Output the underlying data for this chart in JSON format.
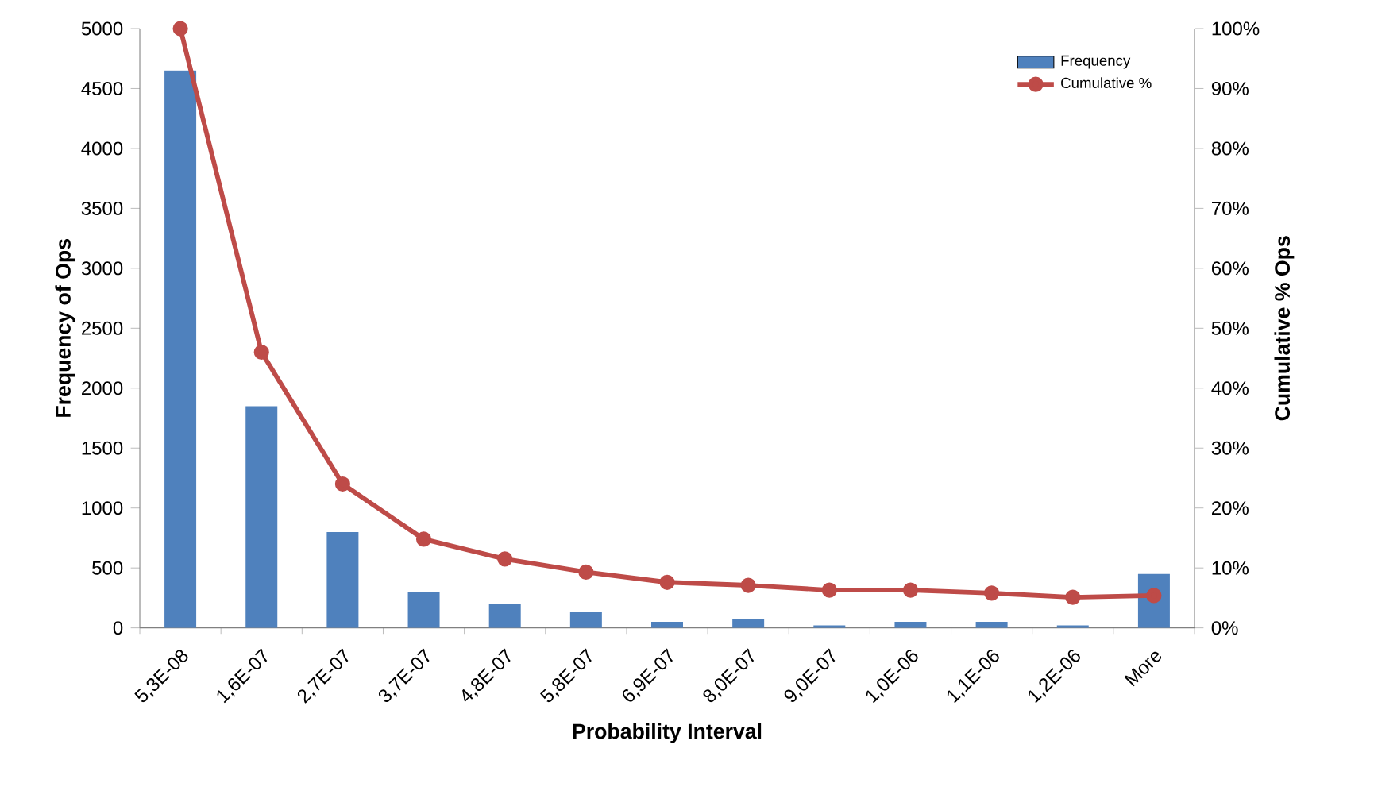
{
  "chart_data": {
    "type": "bar",
    "xlabel": "Probability Interval",
    "ylabel": "Frequency of Ops",
    "y2label": "Cumulative % Ops",
    "categories": [
      "5,3E-08",
      "1,6E-07",
      "2,7E-07",
      "3,7E-07",
      "4,8E-07",
      "5,8E-07",
      "6,9E-07",
      "8,0E-07",
      "9,0E-07",
      "1,0E-06",
      "1,1E-06",
      "1,2E-06",
      "More"
    ],
    "series": [
      {
        "name": "Frequency",
        "color": "#4f81bd",
        "values": [
          4650,
          1850,
          800,
          300,
          200,
          130,
          50,
          70,
          20,
          50,
          50,
          20,
          450
        ]
      },
      {
        "name": "Cumulative %",
        "type": "line",
        "axis": "y2",
        "color": "#be4b48",
        "marker": "circle",
        "values": [
          100,
          46,
          24,
          14.8,
          11.5,
          9.3,
          7.6,
          7.1,
          6.3,
          6.3,
          5.8,
          5.1,
          5.4
        ]
      }
    ],
    "ylim": [
      0,
      5000
    ],
    "yticks": [
      0,
      500,
      1000,
      1500,
      2000,
      2500,
      3000,
      3500,
      4000,
      4500,
      5000
    ],
    "y2lim": [
      0,
      100
    ],
    "y2ticks": [
      {
        "value": 0,
        "label": "0%"
      },
      {
        "value": 10,
        "label": "10%"
      },
      {
        "value": 20,
        "label": "20%"
      },
      {
        "value": 30,
        "label": "30%"
      },
      {
        "value": 40,
        "label": "40%"
      },
      {
        "value": 50,
        "label": "50%"
      },
      {
        "value": 60,
        "label": "60%"
      },
      {
        "value": 70,
        "label": "70%"
      },
      {
        "value": 80,
        "label": "80%"
      },
      {
        "value": 90,
        "label": "90%"
      },
      {
        "value": 100,
        "label": "100%"
      }
    ],
    "legend": "top right"
  }
}
